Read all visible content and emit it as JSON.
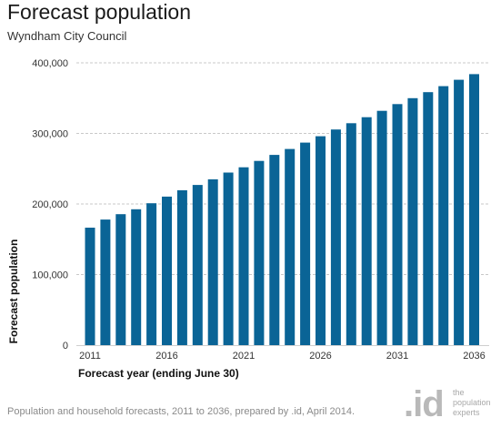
{
  "header": {
    "title": "Forecast population",
    "subtitle": "Wyndham City Council"
  },
  "footer": {
    "source": "Population and household forecasts, 2011 to 2036, prepared by .id, April 2014.",
    "logo_mark": ".id",
    "logo_text": [
      "the",
      "population",
      "experts"
    ]
  },
  "chart_data": {
    "type": "bar",
    "title": "Forecast population",
    "xlabel": "Forecast year (ending June 30)",
    "ylabel": "Forecast population",
    "ylim": [
      0,
      400000
    ],
    "yticks": [
      0,
      100000,
      200000,
      300000,
      400000
    ],
    "ytick_labels": [
      "0",
      "100,000",
      "200,000",
      "300,000",
      "400,000"
    ],
    "xtick_labels": [
      "2011",
      "2016",
      "2021",
      "2026",
      "2031",
      "2036"
    ],
    "grid": true,
    "bar_color": "#0a6496",
    "categories": [
      "2011",
      "2012",
      "2013",
      "2014",
      "2015",
      "2016",
      "2017",
      "2018",
      "2019",
      "2020",
      "2021",
      "2022",
      "2023",
      "2024",
      "2025",
      "2026",
      "2027",
      "2028",
      "2029",
      "2030",
      "2031",
      "2032",
      "2033",
      "2034",
      "2035",
      "2036"
    ],
    "values": [
      166500,
      178000,
      185500,
      192500,
      201000,
      210500,
      219500,
      227000,
      235000,
      244500,
      252000,
      261000,
      269500,
      278000,
      287000,
      296000,
      305500,
      314500,
      323000,
      332000,
      341500,
      350000,
      358500,
      367000,
      376000,
      384000
    ]
  }
}
